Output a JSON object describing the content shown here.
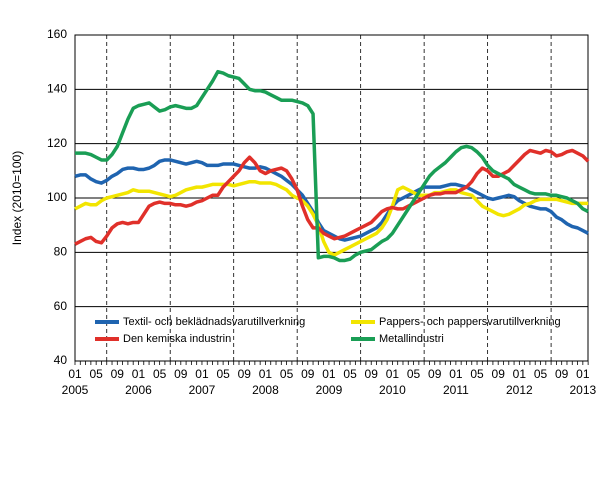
{
  "chart_data": {
    "type": "line",
    "y_label": "Index (2010=100)",
    "categories": [
      "01",
      null,
      null,
      null,
      "05",
      null,
      null,
      null,
      "09",
      null,
      null,
      null,
      "01",
      null,
      null,
      null,
      "05",
      null,
      null,
      null,
      "09",
      null,
      null,
      null,
      "01",
      null,
      null,
      null,
      "05",
      null,
      null,
      null,
      "09",
      null,
      null,
      null,
      "01",
      null,
      null,
      null,
      "05",
      null,
      null,
      null,
      "09",
      null,
      null,
      null,
      "01",
      null,
      null,
      null,
      "05",
      null,
      null,
      null,
      "09",
      null,
      null,
      null,
      "01",
      null,
      null,
      null,
      "05",
      null,
      null,
      null,
      "09",
      null,
      null,
      null,
      "01",
      null,
      null,
      null,
      "05",
      null,
      null,
      null,
      "09",
      null,
      null,
      null,
      "01",
      null,
      null,
      null,
      "05",
      null,
      null,
      null,
      "09",
      null,
      null,
      null,
      "01",
      null
    ],
    "years": [
      "2005",
      "2006",
      "2007",
      "2008",
      "2009",
      "2010",
      "2011",
      "2012",
      "2013"
    ],
    "ylim": [
      40,
      160
    ],
    "yticks": [
      40,
      60,
      80,
      100,
      120,
      140,
      160
    ],
    "grid": true,
    "series": [
      {
        "name": "Textil- och beklädnadsvarutillverkning",
        "color": "#1f64b0",
        "values": [
          108,
          108.5,
          108.5,
          107,
          106,
          105.5,
          106.5,
          108,
          109,
          110.5,
          111,
          111,
          110.5,
          110.5,
          111,
          112,
          113.5,
          114,
          114,
          113.5,
          113,
          112.5,
          113,
          113.5,
          113,
          112,
          112,
          112,
          112.5,
          112.5,
          112.5,
          112,
          111.5,
          111,
          111,
          111.5,
          111,
          110,
          109,
          108,
          106.5,
          105,
          103,
          101,
          98,
          95,
          91,
          88,
          87,
          86,
          85,
          84.5,
          85,
          85.5,
          86,
          87,
          88,
          89,
          91,
          94,
          97,
          99,
          100,
          101,
          102,
          103,
          104,
          104,
          104,
          104,
          104.5,
          105,
          105,
          104.5,
          104,
          103,
          102,
          101,
          100,
          99.5,
          100,
          100.5,
          101,
          100.5,
          99,
          98,
          97,
          96.5,
          96,
          96,
          95,
          93,
          92,
          90.5,
          89.5,
          89,
          88,
          87
        ]
      },
      {
        "name": "Pappers- och pappersvarutillverkning",
        "color": "#f2e500",
        "values": [
          96,
          97,
          98,
          97.5,
          97.5,
          99,
          100,
          100.5,
          101,
          101.5,
          102,
          103,
          102.5,
          102.5,
          102.5,
          102,
          101.5,
          101,
          100.5,
          101,
          102,
          103,
          103.5,
          104,
          104,
          104.5,
          105,
          105,
          105,
          105,
          104.5,
          105,
          105.5,
          106,
          106,
          105.5,
          105.5,
          105.5,
          105,
          104,
          103,
          101,
          100,
          99,
          97,
          94,
          90,
          84,
          80,
          79,
          80,
          81,
          82,
          83,
          84,
          85,
          86,
          87,
          89,
          92,
          97,
          103,
          104,
          103,
          102,
          101,
          101,
          101,
          102,
          102,
          102.5,
          103,
          103,
          102,
          101.5,
          101,
          99,
          97,
          96,
          95,
          94,
          93.5,
          94,
          95,
          96,
          97.5,
          98,
          99,
          99.5,
          99.5,
          99.5,
          99.5,
          99,
          98.5,
          98,
          98,
          98,
          98
        ]
      },
      {
        "name": "Den kemiska industrin",
        "color": "#e0302a",
        "values": [
          83,
          84,
          85,
          85.5,
          84,
          83.5,
          86,
          89,
          90.5,
          91,
          90.5,
          91,
          91,
          94,
          97,
          98,
          98.5,
          98,
          98,
          97.5,
          97.5,
          97,
          97.5,
          98.5,
          99,
          100,
          101,
          101,
          104,
          106,
          108,
          110,
          113,
          115,
          113,
          110,
          109,
          110,
          110.5,
          111,
          110,
          107,
          103,
          97,
          92,
          89,
          89,
          87,
          86,
          85,
          85.5,
          86,
          87,
          88,
          89,
          90,
          91,
          93,
          95,
          96,
          96.5,
          96,
          96,
          97,
          98,
          99,
          100,
          101,
          101.5,
          101.5,
          102,
          102,
          102,
          103,
          104,
          106,
          109,
          111,
          110,
          108,
          108,
          109,
          110,
          112,
          114,
          116,
          117.5,
          117,
          116.5,
          117.5,
          117,
          115.5,
          116,
          117,
          117.5,
          116.5,
          115.5,
          113.5
        ]
      },
      {
        "name": "Metallindustri",
        "color": "#1a9e55",
        "values": [
          116.5,
          116.5,
          116.5,
          116,
          115,
          114,
          114,
          116,
          119,
          124,
          129,
          133,
          134,
          134.5,
          135,
          133.5,
          132,
          132.5,
          133.5,
          134,
          133.5,
          133,
          133,
          134,
          137,
          140,
          143,
          146.5,
          146,
          145,
          144.5,
          144,
          142,
          140,
          139.5,
          139.5,
          139,
          138,
          137,
          136,
          136,
          136,
          135.5,
          135,
          134,
          131,
          78,
          78.5,
          78.5,
          78,
          77,
          77,
          77.5,
          79,
          80,
          80.5,
          81,
          82.5,
          84,
          85,
          87,
          90,
          93,
          96,
          99,
          102,
          105,
          108,
          110,
          111.5,
          113,
          115,
          117,
          118.5,
          119,
          118.5,
          117,
          115,
          112,
          110,
          109,
          108,
          107,
          105,
          104,
          103,
          102,
          101.5,
          101.5,
          101.5,
          101,
          101,
          100.5,
          100,
          99,
          98,
          96,
          95
        ]
      }
    ]
  }
}
